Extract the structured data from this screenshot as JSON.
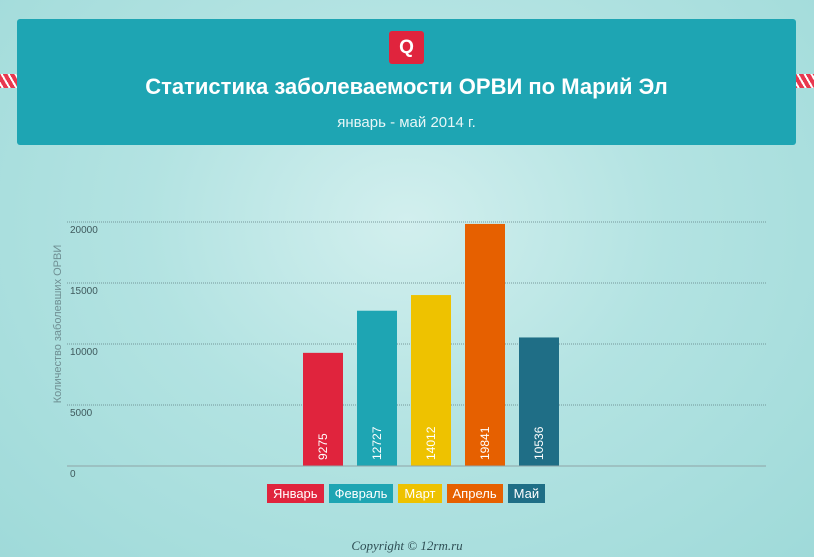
{
  "header": {
    "logo_text": "Q",
    "title": "Статистика заболеваемости ОРВИ по Марий Эл",
    "subtitle": "январь - май 2014 г."
  },
  "chart_data": {
    "type": "bar",
    "categories": [
      "Январь",
      "Февраль",
      "Март",
      "Апрель",
      "Май"
    ],
    "values": [
      9275,
      12727,
      14012,
      19841,
      10536
    ],
    "value_labels": [
      "9275",
      "12727",
      "14012",
      "19841",
      "10536"
    ],
    "colors": [
      "#e0243d",
      "#1ea5b3",
      "#eec200",
      "#e66000",
      "#1f6e86"
    ],
    "ylabel": "Количество заболевших ОРВИ",
    "xlabel": "",
    "ylim": [
      0,
      20000
    ],
    "yticks": [
      0,
      5000,
      10000,
      15000,
      20000
    ],
    "ytick_labels": [
      "0",
      "5000",
      "10000",
      "15000",
      "20000"
    ],
    "grid": true,
    "legend": "bottom-center"
  },
  "footer": {
    "copyright": "Copyright © 12rm.ru"
  }
}
